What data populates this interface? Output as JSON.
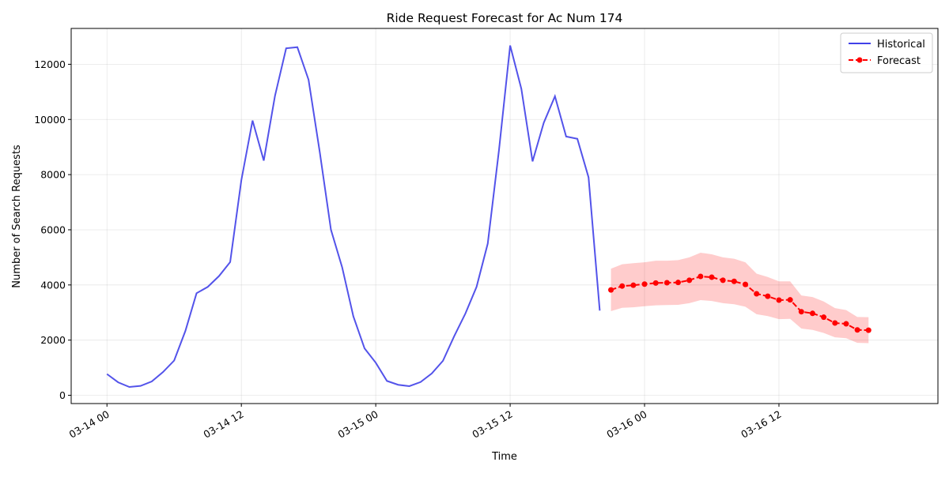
{
  "chart_data": {
    "type": "line",
    "title": "Ride Request Forecast for Ac Num 174",
    "xlabel": "Time",
    "ylabel": "Number of Search Requests",
    "x_start": "2024-03-14 00:00",
    "x_end": "2024-03-16 23:00",
    "ylim": [
      -300,
      13300
    ],
    "grid": true,
    "legend_position": "top-right",
    "x_ticks": [
      {
        "t": "2024-03-14 00:00",
        "label": "03-14 00"
      },
      {
        "t": "2024-03-14 12:00",
        "label": "03-14 12"
      },
      {
        "t": "2024-03-15 00:00",
        "label": "03-15 00"
      },
      {
        "t": "2024-03-15 12:00",
        "label": "03-15 12"
      },
      {
        "t": "2024-03-16 00:00",
        "label": "03-16 00"
      },
      {
        "t": "2024-03-16 12:00",
        "label": "03-16 12"
      }
    ],
    "y_ticks": [
      0,
      2000,
      4000,
      6000,
      8000,
      10000,
      12000
    ],
    "series": [
      {
        "name": "Historical",
        "color": "#4040e8",
        "style": "solid",
        "points": [
          [
            "2024-03-14 00:00",
            770
          ],
          [
            "2024-03-14 01:00",
            470
          ],
          [
            "2024-03-14 02:00",
            300
          ],
          [
            "2024-03-14 03:00",
            340
          ],
          [
            "2024-03-14 04:00",
            500
          ],
          [
            "2024-03-14 05:00",
            840
          ],
          [
            "2024-03-14 06:00",
            1260
          ],
          [
            "2024-03-14 07:00",
            2330
          ],
          [
            "2024-03-14 08:00",
            3700
          ],
          [
            "2024-03-14 09:00",
            3930
          ],
          [
            "2024-03-14 10:00",
            4320
          ],
          [
            "2024-03-14 11:00",
            4830
          ],
          [
            "2024-03-14 12:00",
            7800
          ],
          [
            "2024-03-14 13:00",
            9960
          ],
          [
            "2024-03-14 14:00",
            8510
          ],
          [
            "2024-03-14 15:00",
            10850
          ],
          [
            "2024-03-14 16:00",
            12580
          ],
          [
            "2024-03-14 17:00",
            12620
          ],
          [
            "2024-03-14 18:00",
            11440
          ],
          [
            "2024-03-14 19:00",
            8820
          ],
          [
            "2024-03-14 20:00",
            6000
          ],
          [
            "2024-03-14 21:00",
            4640
          ],
          [
            "2024-03-14 22:00",
            2860
          ],
          [
            "2024-03-14 23:00",
            1700
          ],
          [
            "2024-03-15 00:00",
            1180
          ],
          [
            "2024-03-15 01:00",
            520
          ],
          [
            "2024-03-15 02:00",
            380
          ],
          [
            "2024-03-15 03:00",
            330
          ],
          [
            "2024-03-15 04:00",
            480
          ],
          [
            "2024-03-15 05:00",
            790
          ],
          [
            "2024-03-15 06:00",
            1250
          ],
          [
            "2024-03-15 07:00",
            2140
          ],
          [
            "2024-03-15 08:00",
            2960
          ],
          [
            "2024-03-15 09:00",
            3930
          ],
          [
            "2024-03-15 10:00",
            5500
          ],
          [
            "2024-03-15 11:00",
            8880
          ],
          [
            "2024-03-15 12:00",
            12680
          ],
          [
            "2024-03-15 13:00",
            11110
          ],
          [
            "2024-03-15 14:00",
            8480
          ],
          [
            "2024-03-15 15:00",
            9880
          ],
          [
            "2024-03-15 16:00",
            10840
          ],
          [
            "2024-03-15 17:00",
            9380
          ],
          [
            "2024-03-15 18:00",
            9300
          ],
          [
            "2024-03-15 19:00",
            7900
          ],
          [
            "2024-03-15 20:00",
            3070
          ]
        ]
      },
      {
        "name": "Forecast",
        "color": "#ff0000",
        "style": "dashed",
        "markers": true,
        "points": [
          [
            "2024-03-15 21:00",
            3820
          ],
          [
            "2024-03-15 22:00",
            3960
          ],
          [
            "2024-03-15 23:00",
            3990
          ],
          [
            "2024-03-16 00:00",
            4030
          ],
          [
            "2024-03-16 01:00",
            4070
          ],
          [
            "2024-03-16 02:00",
            4080
          ],
          [
            "2024-03-16 03:00",
            4090
          ],
          [
            "2024-03-16 04:00",
            4170
          ],
          [
            "2024-03-16 05:00",
            4310
          ],
          [
            "2024-03-16 06:00",
            4280
          ],
          [
            "2024-03-16 07:00",
            4170
          ],
          [
            "2024-03-16 08:00",
            4130
          ],
          [
            "2024-03-16 09:00",
            4020
          ],
          [
            "2024-03-16 10:00",
            3680
          ],
          [
            "2024-03-16 11:00",
            3590
          ],
          [
            "2024-03-16 12:00",
            3450
          ],
          [
            "2024-03-16 13:00",
            3460
          ],
          [
            "2024-03-16 14:00",
            3030
          ],
          [
            "2024-03-16 15:00",
            2970
          ],
          [
            "2024-03-16 16:00",
            2830
          ],
          [
            "2024-03-16 17:00",
            2620
          ],
          [
            "2024-03-16 18:00",
            2590
          ],
          [
            "2024-03-16 19:00",
            2370
          ],
          [
            "2024-03-16 20:00",
            2360
          ]
        ],
        "band": {
          "color": "#ff0000",
          "upper": [
            4590,
            4750,
            4790,
            4820,
            4880,
            4880,
            4900,
            5000,
            5170,
            5110,
            5000,
            4950,
            4820,
            4410,
            4290,
            4130,
            4130,
            3620,
            3560,
            3400,
            3160,
            3090,
            2840,
            2830
          ],
          "lower": [
            3050,
            3170,
            3190,
            3230,
            3260,
            3270,
            3280,
            3340,
            3450,
            3420,
            3340,
            3300,
            3210,
            2940,
            2870,
            2760,
            2770,
            2420,
            2370,
            2260,
            2100,
            2070,
            1900,
            1890
          ]
        }
      }
    ]
  }
}
